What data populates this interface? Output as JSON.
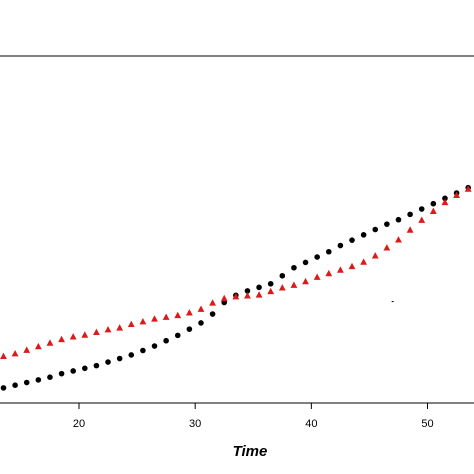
{
  "chart_data": {
    "type": "scatter",
    "title": "",
    "xlabel": "Time",
    "ylabel": "",
    "xlim": [
      13.2,
      54.0
    ],
    "ylim": [
      0,
      390
    ],
    "x_ticks": [
      20,
      30,
      40,
      50
    ],
    "x_tick_labels": [
      "20",
      "30",
      "40",
      "50"
    ],
    "grid": false,
    "legend": "none",
    "series": [
      {
        "marker": "circle",
        "color": "#000000",
        "points": [
          [
            13.5,
            17
          ],
          [
            14.5,
            20
          ],
          [
            15.5,
            23
          ],
          [
            16.5,
            26
          ],
          [
            17.5,
            29
          ],
          [
            18.5,
            33
          ],
          [
            19.5,
            36
          ],
          [
            20.5,
            39
          ],
          [
            21.5,
            42
          ],
          [
            22.5,
            46
          ],
          [
            23.5,
            50
          ],
          [
            24.5,
            54
          ],
          [
            25.5,
            59
          ],
          [
            26.5,
            64
          ],
          [
            27.5,
            70
          ],
          [
            28.5,
            76
          ],
          [
            29.5,
            83
          ],
          [
            30.5,
            90
          ],
          [
            31.5,
            100
          ],
          [
            32.5,
            113
          ],
          [
            33.5,
            121
          ],
          [
            34.5,
            126
          ],
          [
            35.5,
            130
          ],
          [
            36.5,
            134
          ],
          [
            37.5,
            143
          ],
          [
            38.5,
            152
          ],
          [
            39.5,
            158
          ],
          [
            40.5,
            164
          ],
          [
            41.5,
            170
          ],
          [
            42.5,
            177
          ],
          [
            43.5,
            183
          ],
          [
            44.5,
            189
          ],
          [
            45.5,
            195
          ],
          [
            46.5,
            201
          ],
          [
            47.5,
            206
          ],
          [
            48.5,
            212
          ],
          [
            49.5,
            218
          ],
          [
            50.5,
            224
          ],
          [
            51.5,
            230
          ],
          [
            52.5,
            236
          ],
          [
            53.5,
            242
          ]
        ]
      },
      {
        "marker": "triangle",
        "color": "#dd1a1a",
        "points": [
          [
            13.5,
            53
          ],
          [
            14.5,
            56
          ],
          [
            15.5,
            60
          ],
          [
            16.5,
            64
          ],
          [
            17.5,
            68
          ],
          [
            18.5,
            72
          ],
          [
            19.5,
            75
          ],
          [
            20.5,
            77
          ],
          [
            21.5,
            80
          ],
          [
            22.5,
            83
          ],
          [
            23.5,
            85
          ],
          [
            24.5,
            89
          ],
          [
            25.5,
            92
          ],
          [
            26.5,
            95
          ],
          [
            27.5,
            97
          ],
          [
            28.5,
            99
          ],
          [
            29.5,
            102
          ],
          [
            30.5,
            106
          ],
          [
            31.5,
            113
          ],
          [
            32.5,
            118
          ],
          [
            33.5,
            120
          ],
          [
            34.5,
            121
          ],
          [
            35.5,
            122
          ],
          [
            36.5,
            126
          ],
          [
            37.5,
            130
          ],
          [
            38.5,
            133
          ],
          [
            39.5,
            137
          ],
          [
            40.5,
            142
          ],
          [
            41.5,
            146
          ],
          [
            42.5,
            150
          ],
          [
            43.5,
            154
          ],
          [
            44.5,
            159
          ],
          [
            45.5,
            166
          ],
          [
            46.5,
            175
          ],
          [
            47.5,
            184
          ],
          [
            48.5,
            195
          ],
          [
            49.5,
            206
          ],
          [
            50.5,
            216
          ],
          [
            51.5,
            226
          ],
          [
            52.5,
            234
          ],
          [
            53.5,
            241
          ]
        ]
      }
    ],
    "stray_marks": [
      {
        "x": 47.0,
        "y": 114
      }
    ]
  }
}
